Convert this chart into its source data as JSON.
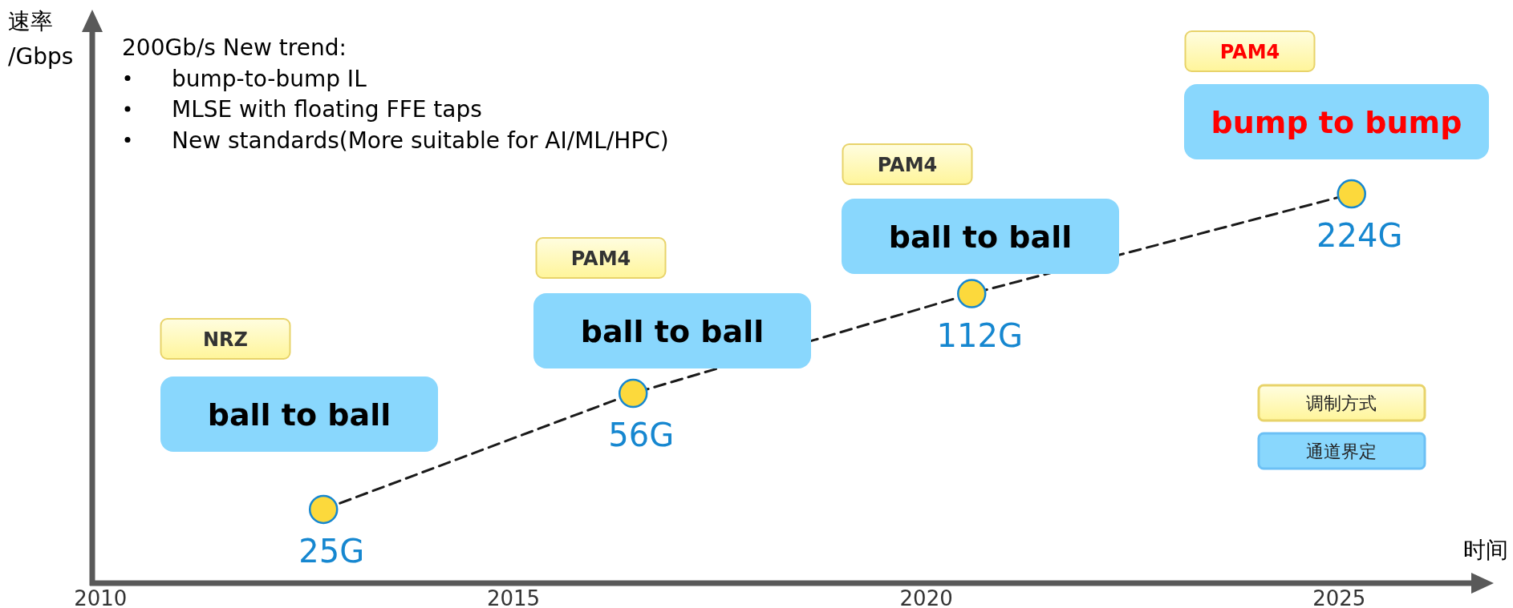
{
  "chart_data": {
    "type": "line",
    "xlabel": "时间",
    "x": [
      2012.7,
      2016.45,
      2020.55,
      2025.15
    ],
    "series": [
      {
        "color": "#1a1a1a",
        "values": [
          25,
          56,
          112,
          224
        ],
        "value_labels": [
          "25G",
          "56G",
          "112G",
          "224G"
        ]
      }
    ],
    "xlim": [
      2009.9,
      2026.6
    ],
    "xticks": [
      2010,
      2015,
      2020,
      2025
    ],
    "log": true,
    "tick_labels": "x",
    "marker": "circle",
    "line_style": "dashed",
    "grid": false,
    "annotations": [
      "速率/Gbps",
      "NRZ",
      "ball to ball",
      "PAM4",
      "ball to ball",
      "PAM4",
      "ball to ball",
      "PAM4",
      "bump to bump",
      "200Gb/s New trend:",
      "bump-to-bump IL",
      "MLSE with floating FFE taps",
      "New standards(More suitable for AI/ML/HPC)",
      "调制方式",
      "通道界定"
    ]
  }
}
